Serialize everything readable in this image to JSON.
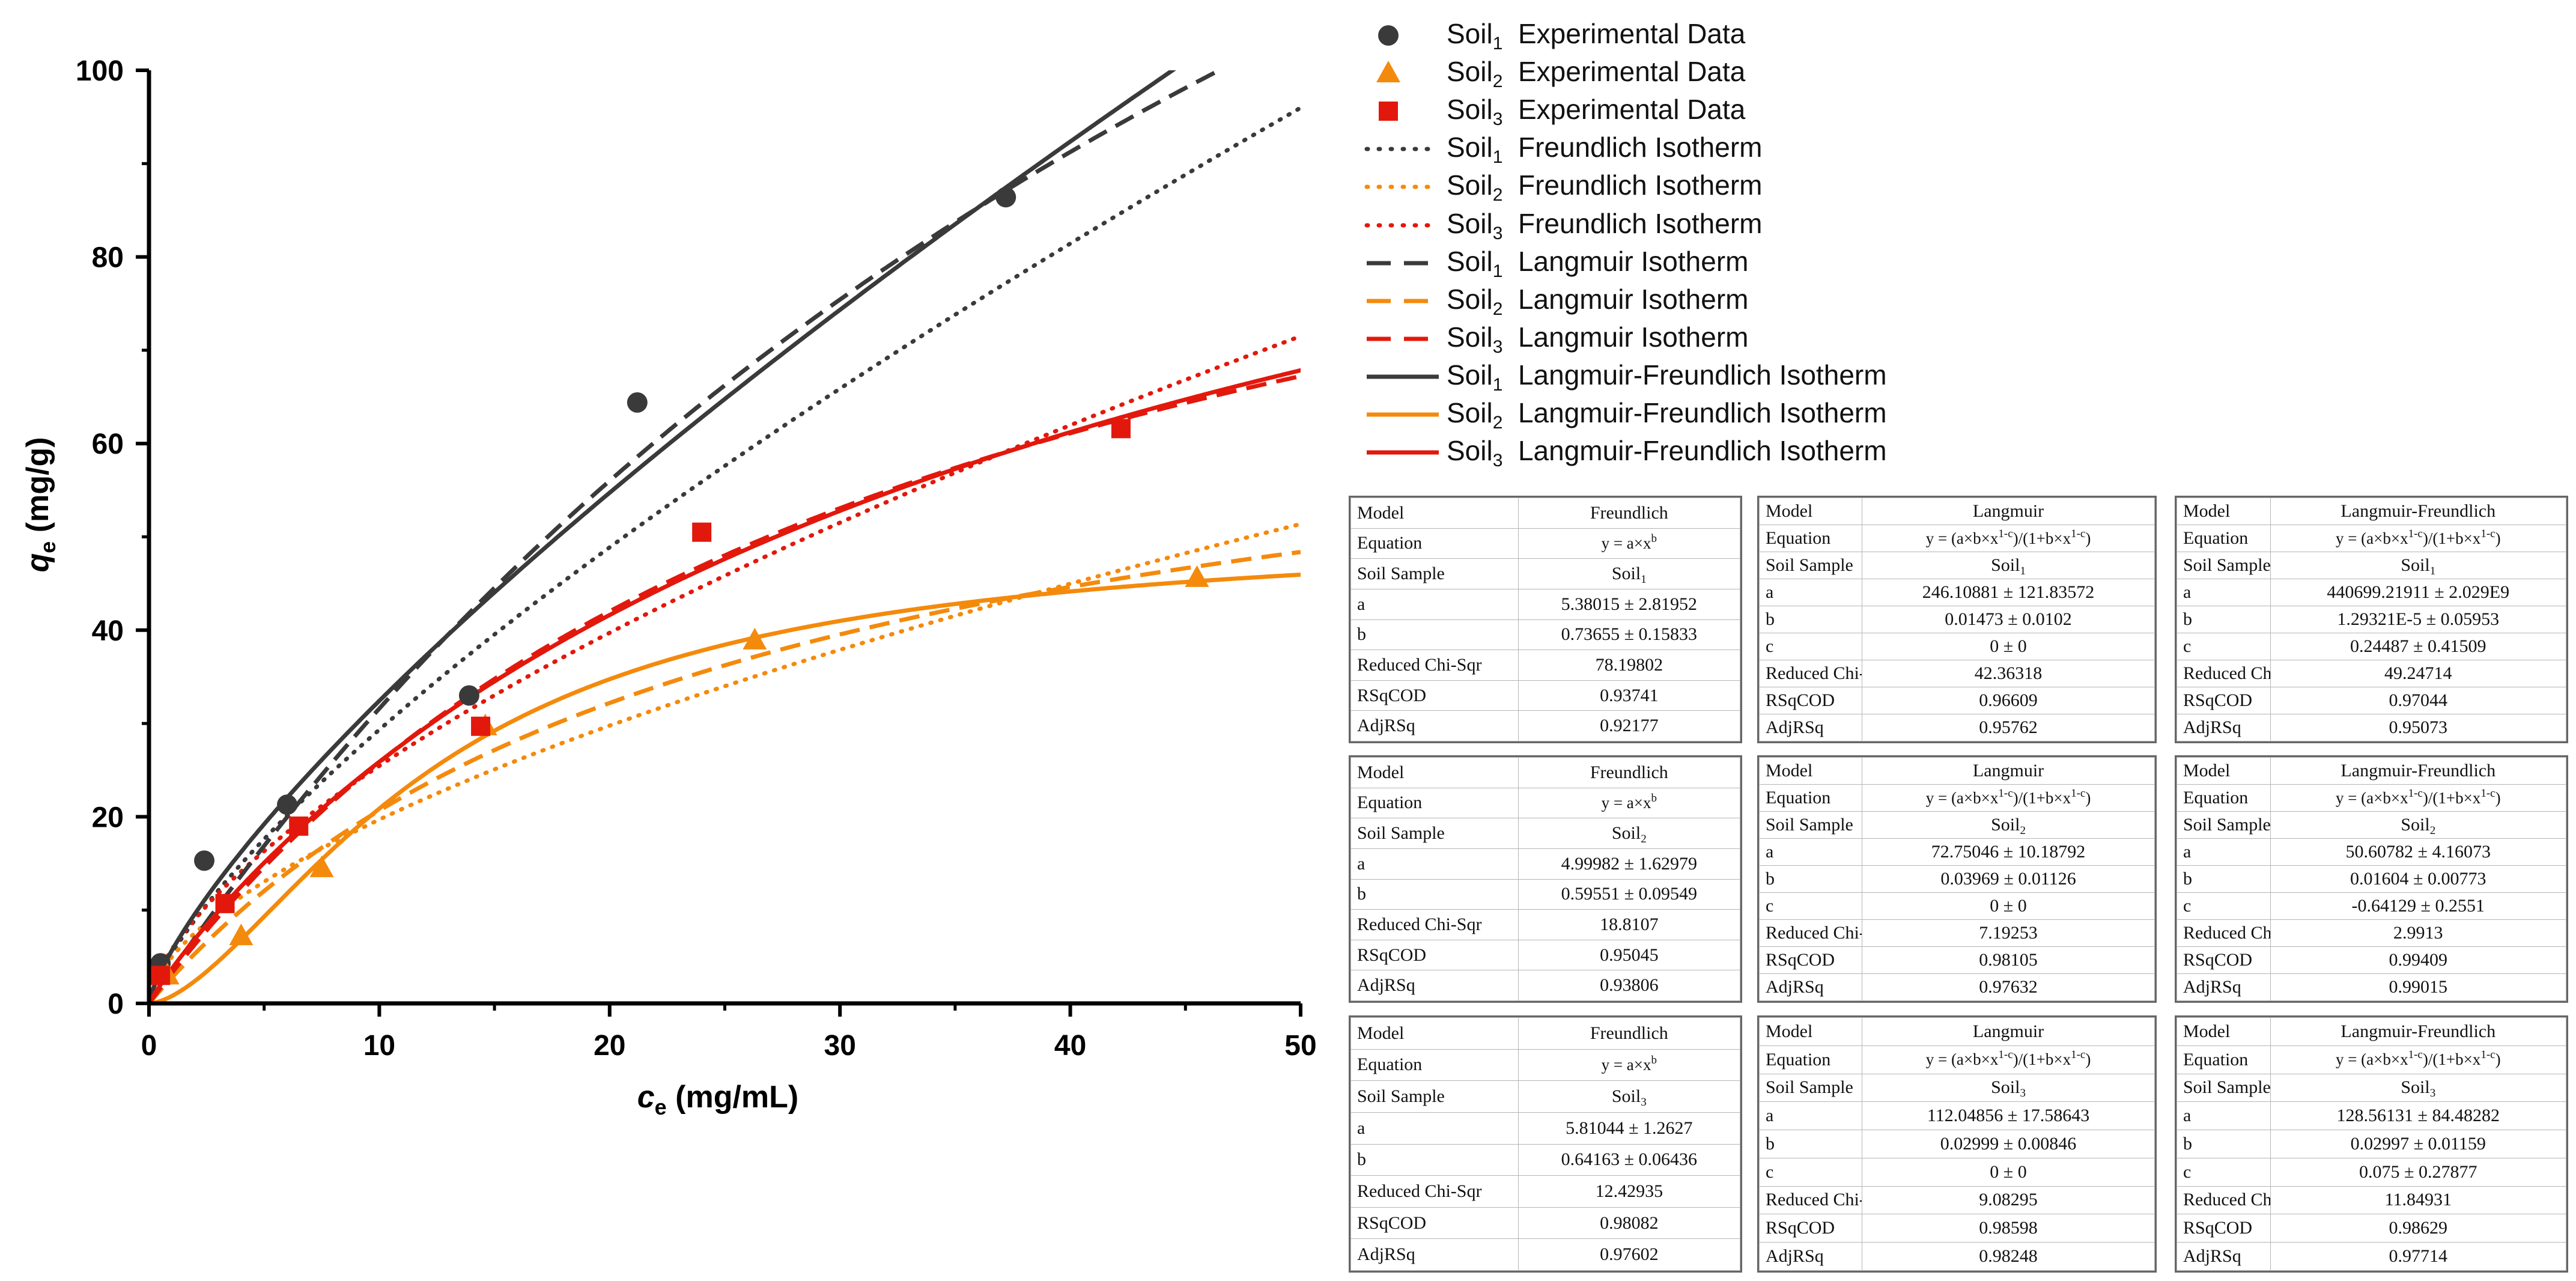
{
  "chart_data": {
    "type": "scatter",
    "title": "",
    "xlabel_main": "c",
    "xlabel_sub": "e",
    "xlabel_unit": " (mg/mL)",
    "ylabel_main": "q",
    "ylabel_sub": "e",
    "ylabel_unit": " (mg/g)",
    "xlim": [
      0,
      50
    ],
    "ylim": [
      0,
      100
    ],
    "xticks": [
      0,
      10,
      20,
      30,
      40,
      50
    ],
    "yticks": [
      0,
      20,
      40,
      60,
      80,
      100
    ],
    "grid": false,
    "colors": {
      "soil1": "#3a3a3a",
      "soil2": "#f48a0c",
      "soil3": "#e3180c"
    },
    "points": [
      {
        "name": "Soil1 Experimental Data",
        "soil": "soil1",
        "marker": "circle",
        "x": [
          0.5,
          2.4,
          6.0,
          13.9,
          21.2,
          37.2
        ],
        "y": [
          4.3,
          15.3,
          21.3,
          33.0,
          64.4,
          86.4
        ]
      },
      {
        "name": "Soil2 Experimental Data",
        "soil": "soil2",
        "marker": "triangle",
        "x": [
          0.8,
          4.0,
          7.5,
          14.6,
          26.3,
          45.5
        ],
        "y": [
          3.0,
          7.2,
          14.5,
          29.7,
          38.9,
          45.6
        ]
      },
      {
        "name": "Soil3 Experimental Data",
        "soil": "soil3",
        "marker": "square",
        "x": [
          0.5,
          3.3,
          6.5,
          14.4,
          24.0,
          42.2
        ],
        "y": [
          3.0,
          10.7,
          19.0,
          29.7,
          50.5,
          61.6
        ]
      }
    ],
    "models": [
      {
        "name": "Soil1 Freundlich Isotherm",
        "soil": "soil1",
        "style": "dot",
        "kind": "F",
        "a": 5.38015,
        "b": 0.73655
      },
      {
        "name": "Soil2 Freundlich Isotherm",
        "soil": "soil2",
        "style": "dot",
        "kind": "F",
        "a": 4.99982,
        "b": 0.59551
      },
      {
        "name": "Soil3 Freundlich Isotherm",
        "soil": "soil3",
        "style": "dot",
        "kind": "F",
        "a": 5.81044,
        "b": 0.64163
      },
      {
        "name": "Soil1 Langmuir Isotherm",
        "soil": "soil1",
        "style": "dash",
        "kind": "LF",
        "a": 246.10881,
        "b": 0.01473,
        "c": 0
      },
      {
        "name": "Soil2 Langmuir Isotherm",
        "soil": "soil2",
        "style": "dash",
        "kind": "LF",
        "a": 72.75046,
        "b": 0.03969,
        "c": 0
      },
      {
        "name": "Soil3 Langmuir Isotherm",
        "soil": "soil3",
        "style": "dash",
        "kind": "LF",
        "a": 112.04856,
        "b": 0.02999,
        "c": 0
      },
      {
        "name": "Soil1 Langmuir-Freundlich Isotherm",
        "soil": "soil1",
        "style": "solid",
        "kind": "LF",
        "a": 440699.21911,
        "b": 1.29321e-05,
        "c": 0.24487
      },
      {
        "name": "Soil2 Langmuir-Freundlich Isotherm",
        "soil": "soil2",
        "style": "solid",
        "kind": "LF",
        "a": 50.60782,
        "b": 0.01604,
        "c": -0.64129
      },
      {
        "name": "Soil3 Langmuir-Freundlich Isotherm",
        "soil": "soil3",
        "style": "solid",
        "kind": "LF",
        "a": 128.56131,
        "b": 0.02997,
        "c": 0.075
      }
    ]
  },
  "legend": [
    {
      "soil": "soil1",
      "sub": "1",
      "label": "Experimental Data",
      "sym": "circle"
    },
    {
      "soil": "soil2",
      "sub": "2",
      "label": "Experimental Data",
      "sym": "triangle"
    },
    {
      "soil": "soil3",
      "sub": "3",
      "label": "Experimental Data",
      "sym": "square"
    },
    {
      "soil": "soil1",
      "sub": "1",
      "label": "Freundlich Isotherm",
      "sym": "dot"
    },
    {
      "soil": "soil2",
      "sub": "2",
      "label": "Freundlich Isotherm",
      "sym": "dot"
    },
    {
      "soil": "soil3",
      "sub": "3",
      "label": "Freundlich Isotherm",
      "sym": "dot"
    },
    {
      "soil": "soil1",
      "sub": "1",
      "label": "Langmuir Isotherm",
      "sym": "dash"
    },
    {
      "soil": "soil2",
      "sub": "2",
      "label": "Langmuir Isotherm",
      "sym": "dash"
    },
    {
      "soil": "soil3",
      "sub": "3",
      "label": "Langmuir Isotherm",
      "sym": "dash"
    },
    {
      "soil": "soil1",
      "sub": "1",
      "label": "Langmuir-Freundlich Isotherm",
      "sym": "solid"
    },
    {
      "soil": "soil2",
      "sub": "2",
      "label": "Langmuir-Freundlich Isotherm",
      "sym": "solid"
    },
    {
      "soil": "soil3",
      "sub": "3",
      "label": "Langmuir-Freundlich Isotherm",
      "sym": "solid"
    }
  ],
  "legend_prefix": "Soil",
  "tables": {
    "labels": {
      "model": "Model",
      "equation": "Equation",
      "soil_sample": "Soil Sample",
      "a": "a",
      "b": "b",
      "c": "c",
      "chi_full": "Reduced Chi-Sqr",
      "chi_short": "Reduced Chi-S",
      "chi_mid": "Reduced Chi-Sq",
      "rsq": "RSqCOD",
      "adj": "AdjRSq",
      "soil_prefix": "Soil"
    },
    "models": {
      "F": "Freundlich",
      "L": "Langmuir",
      "LF": "Langmuir-Freundlich"
    },
    "f1": {
      "sub": "1",
      "a": "5.38015 ± 2.81952",
      "b": "0.73655 ± 0.15833",
      "chi": "78.19802",
      "rsq": "0.93741",
      "adj": "0.92177"
    },
    "f2": {
      "sub": "2",
      "a": "4.99982 ± 1.62979",
      "b": "0.59551 ± 0.09549",
      "chi": "18.8107",
      "rsq": "0.95045",
      "adj": "0.93806"
    },
    "f3": {
      "sub": "3",
      "a": "5.81044 ± 1.2627",
      "b": "0.64163 ± 0.06436",
      "chi": "12.42935",
      "rsq": "0.98082",
      "adj": "0.97602"
    },
    "l1": {
      "sub": "1",
      "a": "246.10881 ± 121.83572",
      "b": "0.01473 ± 0.0102",
      "c": "0 ± 0",
      "chi": "42.36318",
      "rsq": "0.96609",
      "adj": "0.95762"
    },
    "l2": {
      "sub": "2",
      "a": "72.75046 ± 10.18792",
      "b": "0.03969 ± 0.01126",
      "c": "0 ± 0",
      "chi": "7.19253",
      "rsq": "0.98105",
      "adj": "0.97632"
    },
    "l3": {
      "sub": "3",
      "a": "112.04856 ± 17.58643",
      "b": "0.02999 ± 0.00846",
      "c": "0 ± 0",
      "chi": "9.08295",
      "rsq": "0.98598",
      "adj": "0.98248"
    },
    "lf1": {
      "sub": "1",
      "a": "440699.21911 ± 2.029E9",
      "b": "1.29321E-5 ± 0.05953",
      "c": "0.24487 ± 0.41509",
      "chi": "49.24714",
      "rsq": "0.97044",
      "adj": "0.95073"
    },
    "lf2": {
      "sub": "2",
      "a": "50.60782 ± 4.16073",
      "b": "0.01604 ± 0.00773",
      "c": "-0.64129 ± 0.2551",
      "chi": "2.9913",
      "rsq": "0.99409",
      "adj": "0.99015"
    },
    "lf3": {
      "sub": "3",
      "a": "128.56131 ± 84.48282",
      "b": "0.02997 ± 0.01159",
      "c": "0.075 ± 0.27877",
      "chi": "11.84931",
      "rsq": "0.98629",
      "adj": "0.97714"
    }
  }
}
